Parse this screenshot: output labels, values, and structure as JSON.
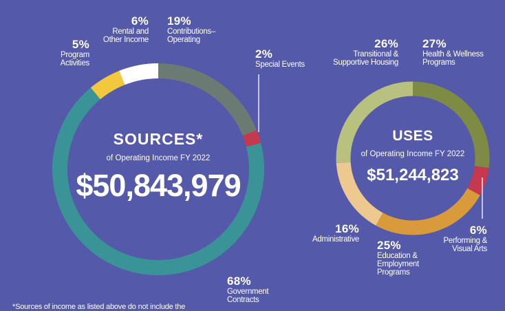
{
  "chart_data": [
    {
      "type": "pie",
      "donut": true,
      "title": "SOURCES*",
      "subtitle": "of Operating Income FY 2022",
      "total": "$50,843,979",
      "segments": [
        {
          "label": "Contributions—Operating",
          "percent_label": "19%",
          "value": 19,
          "color": "#6b7a72"
        },
        {
          "label": "Special Events",
          "percent_label": "2%",
          "value": 2,
          "color": "#c5384d"
        },
        {
          "label": "Government Contracts",
          "percent_label": "68%",
          "value": 68,
          "color": "#3a9396"
        },
        {
          "label": "Program Activities",
          "percent_label": "5%",
          "value": 5,
          "color": "#f2c83c"
        },
        {
          "label": "Rental and Other Income",
          "percent_label": "6%",
          "value": 6,
          "color": "#ffffff"
        }
      ]
    },
    {
      "type": "pie",
      "donut": true,
      "title": "USES",
      "subtitle": "of Operating Income FY 2022",
      "total": "$51,244,823",
      "segments": [
        {
          "label": "Health & Wellness Programs",
          "percent_label": "27%",
          "value": 27,
          "color": "#7d8b45"
        },
        {
          "label": "Performing & Visual Arts",
          "percent_label": "6%",
          "value": 6,
          "color": "#c5384d"
        },
        {
          "label": "Education & Employment Programs",
          "percent_label": "25%",
          "value": 25,
          "color": "#d99a3a"
        },
        {
          "label": "Administrative",
          "percent_label": "16%",
          "value": 16,
          "color": "#edc98f"
        },
        {
          "label": "Transitional & Supportive Housing",
          "percent_label": "26%",
          "value": 26,
          "color": "#b8c27e"
        }
      ]
    }
  ],
  "labels": {
    "contrib_pct": "19%",
    "contrib_l1": "Contributions–",
    "contrib_l2": "Operating",
    "rental_pct": "6%",
    "rental_l1": "Rental and",
    "rental_l2": "Other Income",
    "program_pct": "5%",
    "program_l1": "Program",
    "program_l2": "Activities",
    "special_pct": "2%",
    "special_l1": "Special Events",
    "gov_pct": "68%",
    "gov_l1": "Government",
    "gov_l2": "Contracts",
    "trans_pct": "26%",
    "trans_l1": "Transitional &",
    "trans_l2": "Supportive Housing",
    "health_pct": "27%",
    "health_l1": "Health & Wellness",
    "health_l2": "Programs",
    "admin_pct": "16%",
    "admin_l1": "Administrative",
    "edu_pct": "25%",
    "edu_l1": "Education &",
    "edu_l2": "Employment",
    "edu_l3": "Programs",
    "perf_pct": "6%",
    "perf_l1": "Performing &",
    "perf_l2": "Visual Arts"
  },
  "footnote": "*Sources of income as listed above do not include the"
}
